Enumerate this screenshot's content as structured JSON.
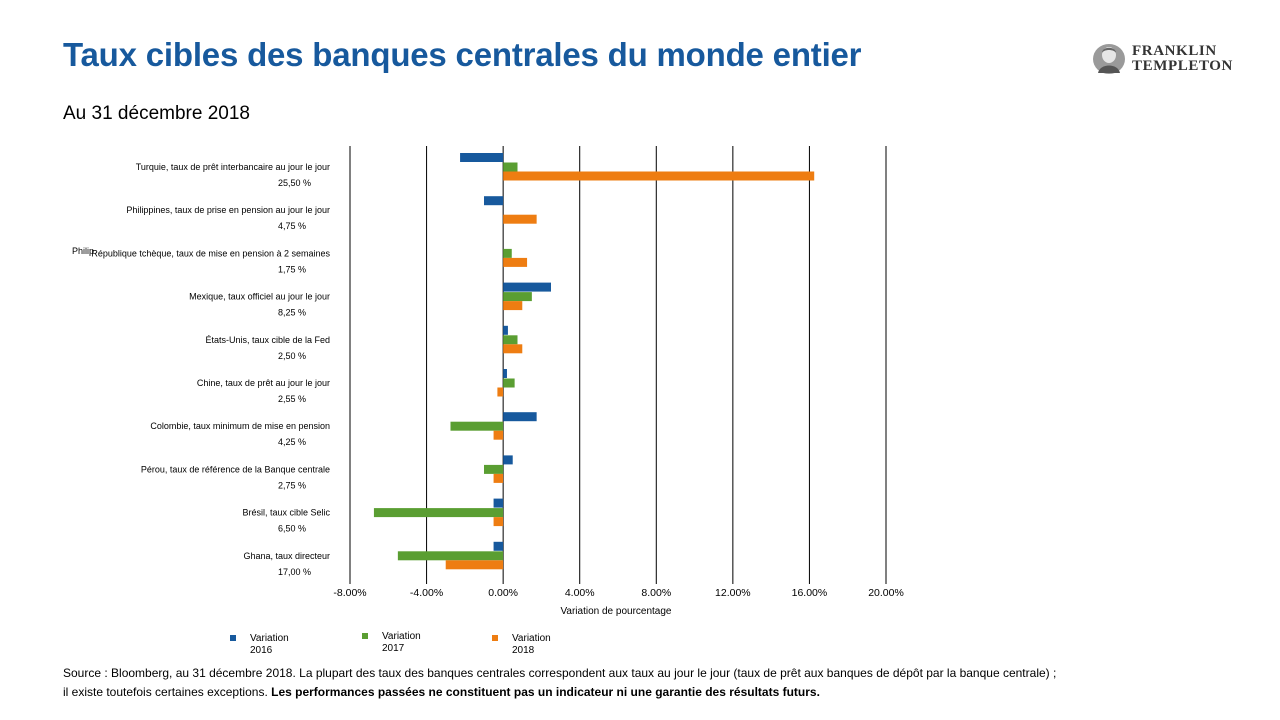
{
  "header": {
    "title": "Taux cibles des banques centrales du monde entier",
    "subtitle": "Au 31 décembre 2018",
    "logo_line1": "FRANKLIN",
    "logo_line2": "TEMPLETON"
  },
  "chart_data": {
    "type": "bar",
    "orientation": "horizontal",
    "xlabel": "Variation de pourcentage",
    "xlim": [
      -8,
      20
    ],
    "x_ticks": [
      "-8.00%",
      "-4.00%",
      "0.00%",
      "4.00%",
      "8.00%",
      "12.00%",
      "16.00%",
      "20.00%"
    ],
    "grid": true,
    "legend_position": "bottom",
    "colors": [
      "#17599d",
      "#5a9e32",
      "#ee7d12"
    ],
    "categories": [
      {
        "label": "Turquie, taux de prêt interbancaire au jour le jour",
        "rate": "25,50 %"
      },
      {
        "label": "Philippines, taux de prise en pension au jour le jour",
        "rate": "4,75 %",
        "stray_label": "Philip"
      },
      {
        "label": "République tchèque, taux de mise en pension à 2 semaines",
        "rate": "1,75 %"
      },
      {
        "label": "Mexique, taux officiel au jour le jour",
        "rate": "8,25 %"
      },
      {
        "label": "États-Unis, taux cible de la Fed",
        "rate": "2,50 %"
      },
      {
        "label": "Chine, taux de prêt au jour le jour",
        "rate": "2,55 %"
      },
      {
        "label": "Colombie, taux minimum de mise en pension",
        "rate": "4,25 %"
      },
      {
        "label": "Pérou, taux de référence de la Banque centrale",
        "rate": "2,75 %"
      },
      {
        "label": "Brésil, taux cible Selic",
        "rate": "6,50 %"
      },
      {
        "label": "Ghana, taux directeur",
        "rate": "17,00 %"
      }
    ],
    "series": [
      {
        "name": "Variation 2016",
        "values": [
          -2.25,
          -1.0,
          0.0,
          2.5,
          0.25,
          0.2,
          1.75,
          0.5,
          -0.5,
          -0.5
        ]
      },
      {
        "name": "Variation 2017",
        "values": [
          0.75,
          0.0,
          0.45,
          1.5,
          0.75,
          0.6,
          -2.75,
          -1.0,
          -6.75,
          -5.5
        ]
      },
      {
        "name": "Variation 2018",
        "values": [
          16.25,
          1.75,
          1.25,
          1.0,
          1.0,
          -0.3,
          -0.5,
          -0.5,
          -0.5,
          -3.0
        ]
      }
    ]
  },
  "legend": [
    {
      "line1": "Variation",
      "line2": "2016"
    },
    {
      "line1": "Variation",
      "line2": "2017"
    },
    {
      "line1": "Variation",
      "line2": "2018"
    }
  ],
  "footer": {
    "source_text": "Source : Bloomberg, au 31 décembre 2018. La plupart des taux des banques centrales correspondent aux taux au jour le jour (taux de prêt aux banques de dépôt par la banque centrale) ; il existe toutefois certaines exceptions. ",
    "disclaimer": "Les performances passées ne constituent pas un indicateur ni une garantie des résultats futurs."
  }
}
